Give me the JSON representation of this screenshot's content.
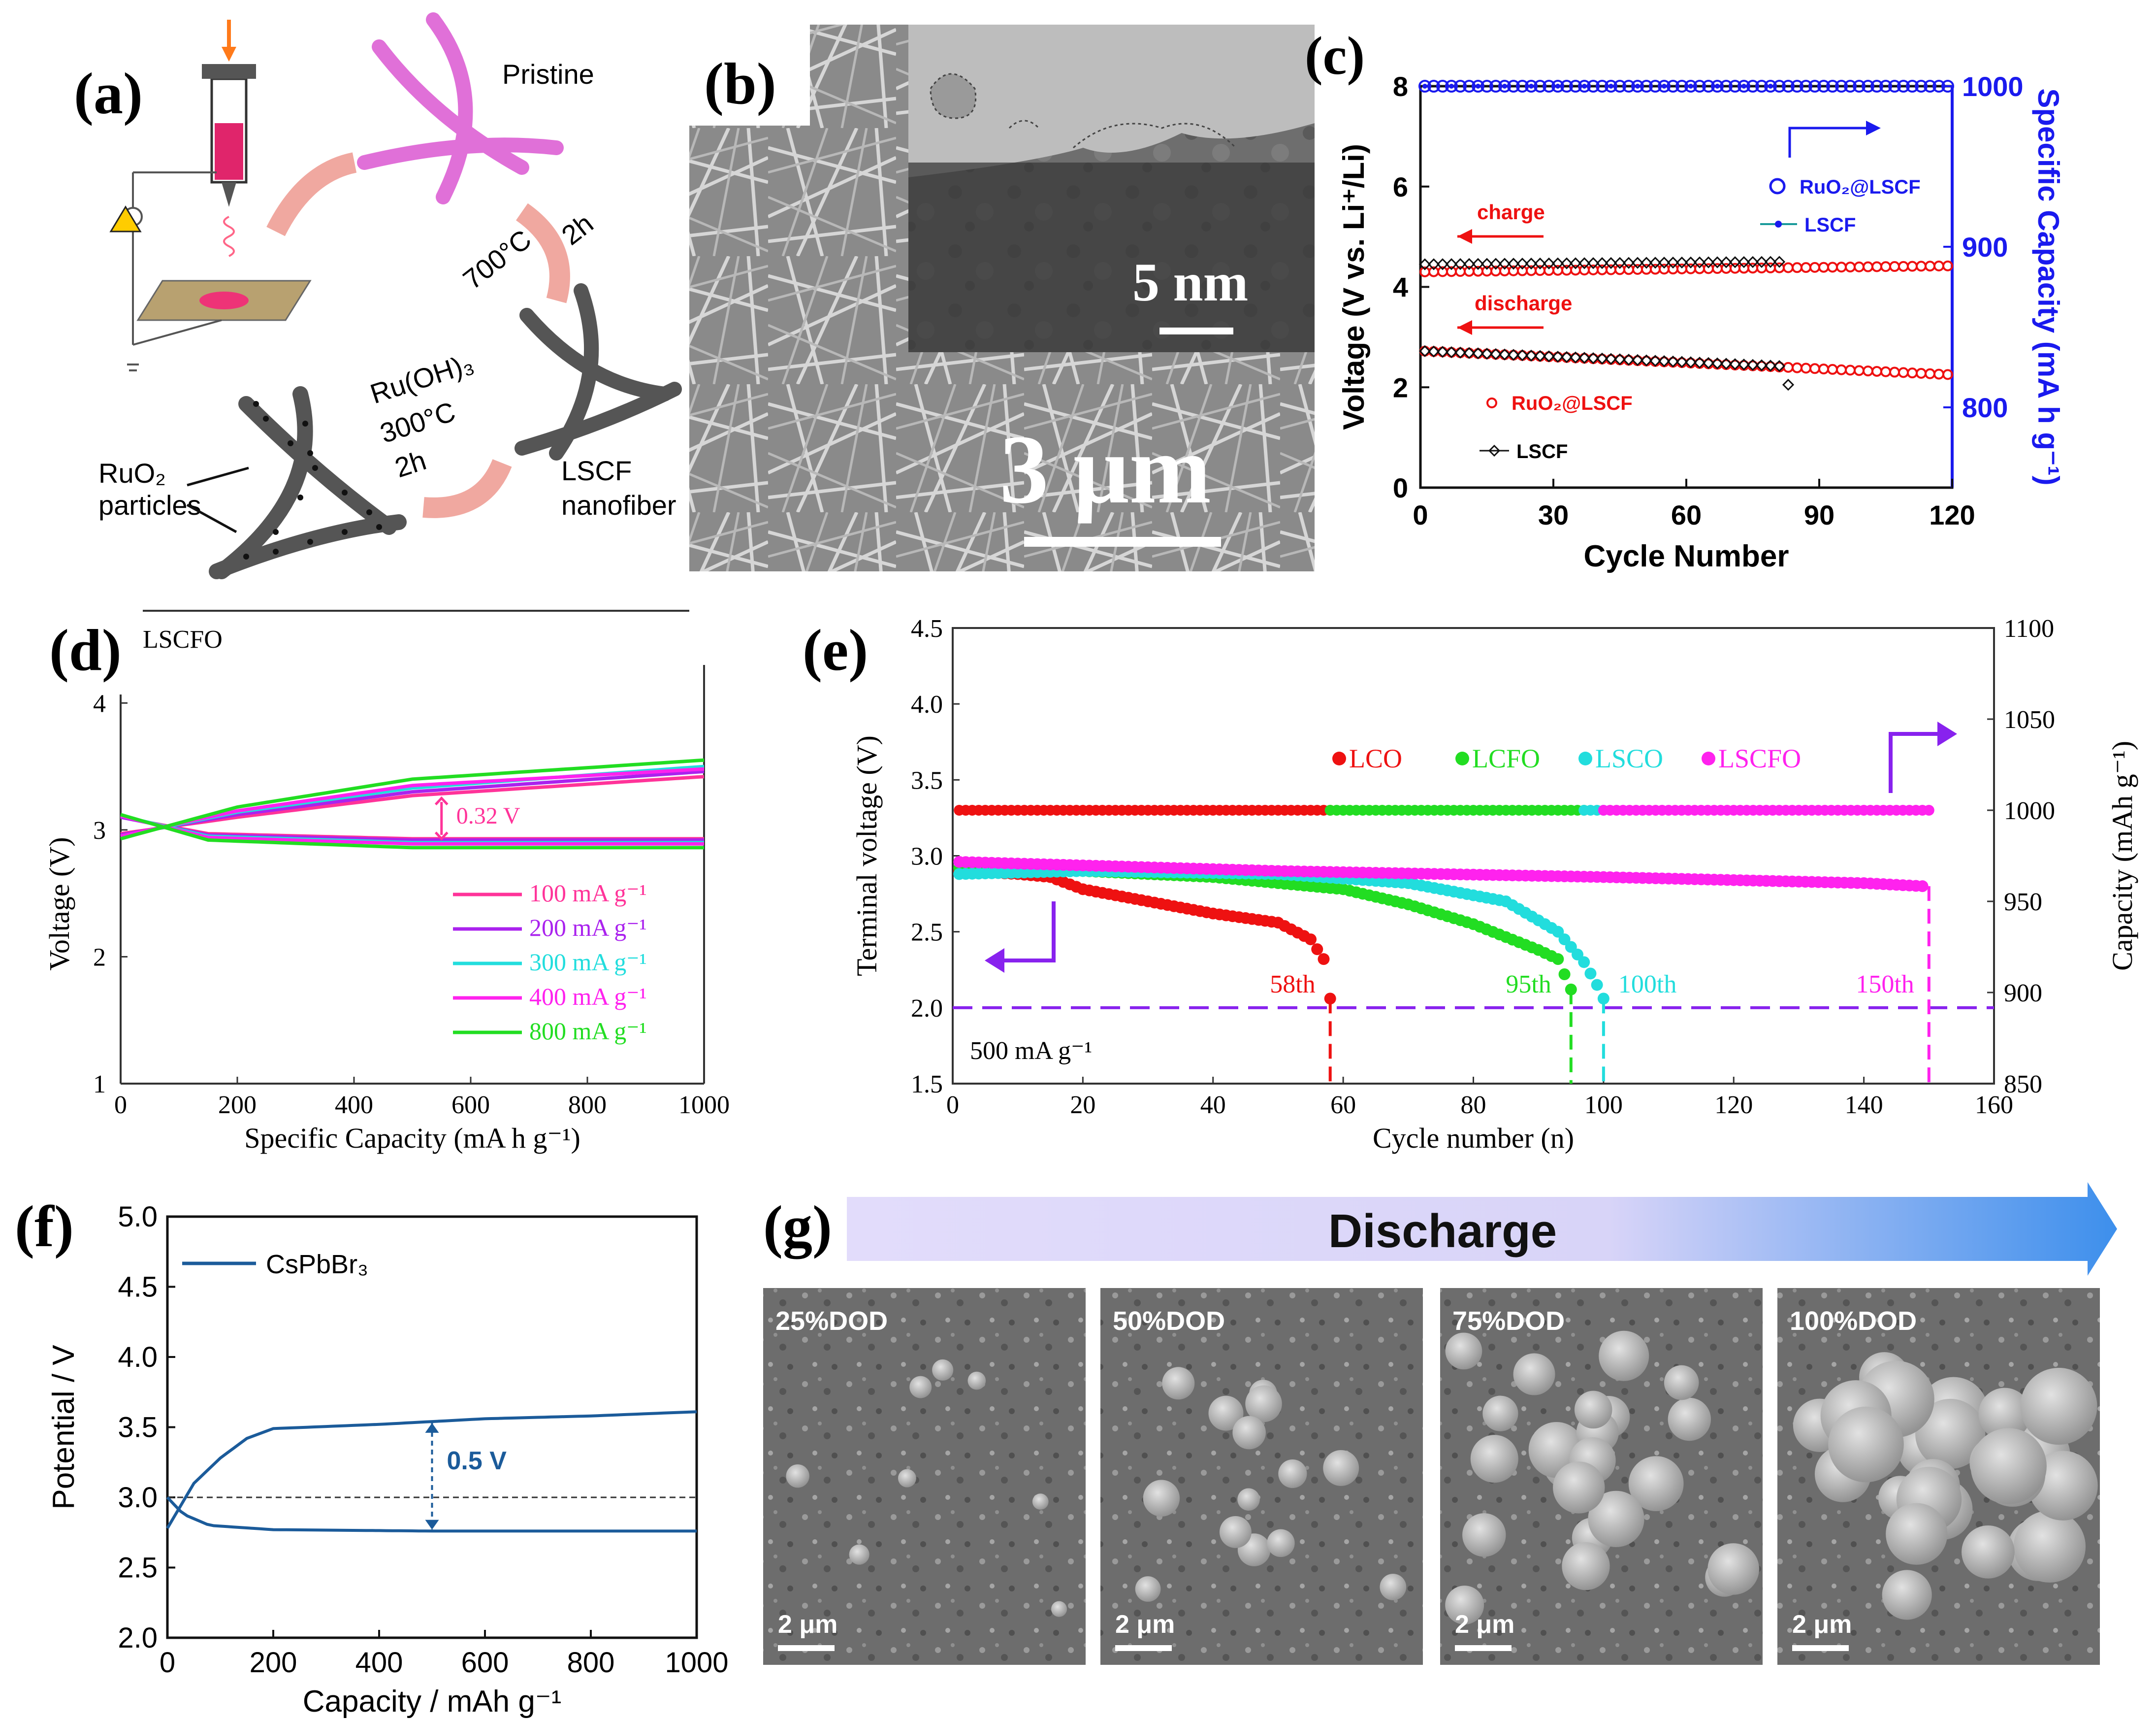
{
  "figure_labels": {
    "a": "(a)",
    "b": "(b)",
    "c": "(c)",
    "d": "(d)",
    "e": "(e)",
    "f": "(f)",
    "g": "(g)"
  },
  "schematic": {
    "pristine": "Pristine",
    "step1_temp": "700°C",
    "step1_time": "2h",
    "lscf_nanofiber_1": "LSCF",
    "lscf_nanofiber_2": "nanofiber",
    "step2_reagent": "Ru(OH)₃",
    "step2_temp": "300°C",
    "step2_time": "2h",
    "ruo2_particles_1": "RuO₂",
    "ruo2_particles_2": "particles"
  },
  "micrograph_b": {
    "inset_scale": "5 nm",
    "main_scale": "3 μm"
  },
  "sem_series": {
    "banner": "Discharge",
    "panels": [
      {
        "label": "25%DOD",
        "scale": "2 μm"
      },
      {
        "label": "50%DOD",
        "scale": "2 μm"
      },
      {
        "label": "75%DOD",
        "scale": "2 μm"
      },
      {
        "label": "100%DOD",
        "scale": "2 μm"
      }
    ]
  },
  "colors": {
    "red": "#ee1111",
    "blue": "#1a1aee",
    "green": "#22dd22",
    "cyan": "#22dddd",
    "magenta": "#ff22ee",
    "purple": "#aa22ee",
    "navy": "#1b5b9a",
    "pink": "#ff3399",
    "violet": "#8822ee"
  },
  "chart_data": [
    {
      "id": "c",
      "type": "scatter",
      "xlabel": "Cycle Number",
      "ylabel": "Voltage (V vs. Li⁺/Li)",
      "y2label": "Specific Capacity (mA h g⁻¹)",
      "xlim": [
        0,
        120
      ],
      "ylim": [
        0,
        8
      ],
      "y2lim": [
        750,
        1000
      ],
      "xticks": [
        "0",
        "30",
        "60",
        "90",
        "120"
      ],
      "yticks": [
        "0",
        "2",
        "4",
        "6",
        "8"
      ],
      "y2ticks": [
        "800",
        "900",
        "1000"
      ],
      "annotations": [
        "charge",
        "discharge"
      ],
      "legend": [
        {
          "name": "RuO₂@LSCF",
          "axis": "right"
        },
        {
          "name": "LSCF",
          "axis": "right"
        },
        {
          "name": "RuO₂@LSCF",
          "axis": "left"
        },
        {
          "name": "LSCF",
          "axis": "left"
        }
      ],
      "series": [
        {
          "name": "RuO2@LSCF capacity",
          "axis": "y2",
          "values": "1000 mAh/g, cycles 1-120"
        },
        {
          "name": "LSCF capacity",
          "axis": "y2",
          "values": "1000 mAh/g, cycles 1-83"
        },
        {
          "name": "RuO2@LSCF charge",
          "axis": "y",
          "start": 4.3,
          "end": 4.42,
          "cycles": [
            1,
            120
          ]
        },
        {
          "name": "LSCF charge",
          "axis": "y",
          "start": 4.45,
          "end": 4.5,
          "cycles": [
            1,
            82
          ]
        },
        {
          "name": "RuO2@LSCF discharge",
          "axis": "y",
          "start": 2.72,
          "end": 2.25,
          "cycles": [
            1,
            120
          ]
        },
        {
          "name": "LSCF discharge",
          "axis": "y",
          "start": 2.72,
          "end": 2.42,
          "cycles": [
            1,
            81
          ],
          "last": {
            "x": 83,
            "y": 2.05
          }
        }
      ]
    },
    {
      "id": "d",
      "type": "line",
      "title": "LSCFO",
      "xlabel": "Specific Capacity (mA h g⁻¹)",
      "ylabel": "Voltage (V)",
      "xlim": [
        0,
        1000
      ],
      "ylim": [
        1,
        4.3
      ],
      "xticks": [
        "0",
        "200",
        "400",
        "600",
        "800",
        "1000"
      ],
      "yticks": [
        "1",
        "2",
        "3",
        "4"
      ],
      "annotation": "0.32 V",
      "series": [
        {
          "name": "100 mA g⁻¹",
          "charge": [
            [
              0,
              2.97
            ],
            [
              200,
              3.1
            ],
            [
              500,
              3.27
            ],
            [
              1000,
              3.42
            ]
          ],
          "discharge": [
            [
              0,
              3.1
            ],
            [
              150,
              2.97
            ],
            [
              500,
              2.93
            ],
            [
              1000,
              2.93
            ]
          ]
        },
        {
          "name": "200 mA g⁻¹",
          "charge": [
            [
              0,
              2.96
            ],
            [
              200,
              3.12
            ],
            [
              500,
              3.3
            ],
            [
              1000,
              3.46
            ]
          ],
          "discharge": [
            [
              0,
              3.1
            ],
            [
              150,
              2.96
            ],
            [
              500,
              2.92
            ],
            [
              1000,
              2.92
            ]
          ]
        },
        {
          "name": "300 mA g⁻¹",
          "charge": [
            [
              0,
              2.95
            ],
            [
              200,
              3.14
            ],
            [
              500,
              3.33
            ],
            [
              1000,
              3.5
            ]
          ],
          "discharge": [
            [
              0,
              3.11
            ],
            [
              150,
              2.95
            ],
            [
              500,
              2.9
            ],
            [
              1000,
              2.9
            ]
          ]
        },
        {
          "name": "400 mA g⁻¹",
          "charge": [
            [
              0,
              2.95
            ],
            [
              200,
              3.15
            ],
            [
              500,
              3.35
            ],
            [
              1000,
              3.48
            ]
          ],
          "discharge": [
            [
              0,
              3.11
            ],
            [
              150,
              2.94
            ],
            [
              500,
              2.89
            ],
            [
              1000,
              2.89
            ]
          ]
        },
        {
          "name": "800 mA g⁻¹",
          "charge": [
            [
              0,
              2.93
            ],
            [
              200,
              3.18
            ],
            [
              500,
              3.4
            ],
            [
              1000,
              3.55
            ]
          ],
          "discharge": [
            [
              0,
              3.12
            ],
            [
              150,
              2.92
            ],
            [
              500,
              2.86
            ],
            [
              1000,
              2.86
            ]
          ]
        }
      ]
    },
    {
      "id": "e",
      "type": "scatter",
      "xlabel": "Cycle number (n)",
      "ylabel": "Terminal voltage (V)",
      "y2label": "Capacity (mAh g⁻¹)",
      "xlim": [
        0,
        160
      ],
      "ylim": [
        1.5,
        4.5
      ],
      "y2lim": [
        850,
        1100
      ],
      "xticks": [
        "0",
        "20",
        "40",
        "60",
        "80",
        "100",
        "120",
        "140",
        "160"
      ],
      "yticks": [
        "1.5",
        "2.0",
        "2.5",
        "3.0",
        "3.5",
        "4.0",
        "4.5"
      ],
      "y2ticks": [
        "850",
        "900",
        "950",
        "1000",
        "1050",
        "1100"
      ],
      "cutoff_voltage": 2.0,
      "rate_label": "500 mA g⁻¹",
      "legend": [
        "LCO",
        "LCFO",
        "LSCO",
        "LSCFO"
      ],
      "series": [
        {
          "name": "LCO",
          "end_label": "58th",
          "end_cycle": 58,
          "points": [
            [
              1,
              2.9
            ],
            [
              10,
              2.88
            ],
            [
              15,
              2.86
            ],
            [
              20,
              2.78
            ],
            [
              30,
              2.7
            ],
            [
              40,
              2.62
            ],
            [
              50,
              2.56
            ],
            [
              55,
              2.45
            ],
            [
              57,
              2.32
            ],
            [
              58,
              2.06
            ]
          ]
        },
        {
          "name": "LCFO",
          "end_label": "95th",
          "end_cycle": 95,
          "points": [
            [
              1,
              2.92
            ],
            [
              20,
              2.9
            ],
            [
              40,
              2.86
            ],
            [
              60,
              2.78
            ],
            [
              70,
              2.68
            ],
            [
              80,
              2.55
            ],
            [
              90,
              2.38
            ],
            [
              93,
              2.32
            ],
            [
              95,
              2.12
            ]
          ]
        },
        {
          "name": "LSCO",
          "end_label": "100th",
          "end_cycle": 100,
          "points": [
            [
              1,
              2.88
            ],
            [
              20,
              2.9
            ],
            [
              50,
              2.88
            ],
            [
              70,
              2.82
            ],
            [
              85,
              2.7
            ],
            [
              93,
              2.5
            ],
            [
              97,
              2.3
            ],
            [
              99,
              2.15
            ],
            [
              100,
              2.06
            ]
          ]
        },
        {
          "name": "LSCFO",
          "end_label": "150th",
          "end_cycle": 150,
          "points": [
            [
              1,
              2.96
            ],
            [
              50,
              2.9
            ],
            [
              100,
              2.86
            ],
            [
              140,
              2.82
            ],
            [
              149,
              2.8
            ]
          ]
        },
        {
          "name": "Capacity",
          "axis": "y2",
          "value": 1000,
          "segments": [
            [
              "LCO",
              1,
              58
            ],
            [
              "LCFO",
              58,
              97
            ],
            [
              "LSCO",
              97,
              100
            ],
            [
              "LSCFO",
              100,
              150
            ]
          ]
        }
      ]
    },
    {
      "id": "f",
      "type": "line",
      "xlabel": "Capacity / mAh g⁻¹",
      "ylabel": "Potential / V",
      "xlim": [
        0,
        1000
      ],
      "ylim": [
        2.0,
        5.0
      ],
      "xticks": [
        "0",
        "200",
        "400",
        "600",
        "800",
        "1000"
      ],
      "yticks": [
        "2.0",
        "2.5",
        "3.0",
        "3.5",
        "4.0",
        "4.5",
        "5.0"
      ],
      "legend": [
        "CsPbBr₃"
      ],
      "annotation": "0.5 V",
      "reference_line": 3.0,
      "series": [
        {
          "name": "CsPbBr3 charge",
          "points": [
            [
              0,
              2.78
            ],
            [
              50,
              3.1
            ],
            [
              100,
              3.28
            ],
            [
              150,
              3.42
            ],
            [
              200,
              3.49
            ],
            [
              400,
              3.52
            ],
            [
              600,
              3.56
            ],
            [
              800,
              3.58
            ],
            [
              1000,
              3.61
            ]
          ]
        },
        {
          "name": "CsPbBr3 discharge",
          "points": [
            [
              0,
              3.0
            ],
            [
              30,
              2.88
            ],
            [
              80,
              2.8
            ],
            [
              200,
              2.77
            ],
            [
              500,
              2.76
            ],
            [
              1000,
              2.76
            ]
          ]
        }
      ]
    }
  ]
}
